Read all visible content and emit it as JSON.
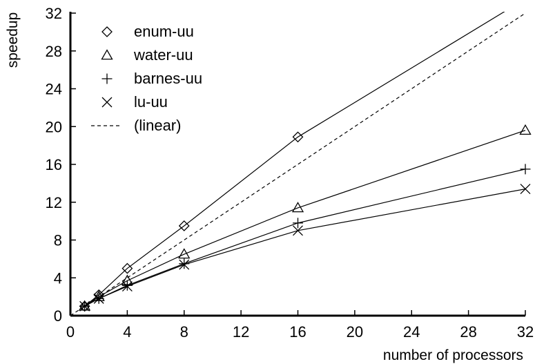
{
  "chart_data": {
    "type": "line",
    "title": "",
    "xlabel": "number of processors",
    "ylabel": "speedup",
    "xlim": [
      0,
      32
    ],
    "ylim": [
      0,
      32
    ],
    "xticks": [
      0,
      4,
      8,
      12,
      16,
      20,
      24,
      28,
      32
    ],
    "yticks": [
      0,
      4,
      8,
      12,
      16,
      20,
      24,
      28,
      32
    ],
    "grid": false,
    "legend_position": "top-left",
    "series": [
      {
        "name": "enum-uu",
        "marker": "diamond",
        "line": "solid",
        "x": [
          1,
          2,
          4,
          8,
          16,
          32
        ],
        "y": [
          1.0,
          2.2,
          5.0,
          9.5,
          18.9,
          33.5
        ]
      },
      {
        "name": "water-uu",
        "marker": "triangle",
        "line": "solid",
        "x": [
          1,
          2,
          4,
          8,
          16,
          32
        ],
        "y": [
          1.0,
          2.0,
          3.7,
          6.5,
          11.4,
          19.6
        ]
      },
      {
        "name": "barnes-uu",
        "marker": "plus",
        "line": "solid",
        "x": [
          1,
          2,
          4,
          8,
          16,
          32
        ],
        "y": [
          1.0,
          1.8,
          3.2,
          5.5,
          9.8,
          15.5
        ]
      },
      {
        "name": "lu-uu",
        "marker": "cross",
        "line": "solid",
        "x": [
          1,
          2,
          4,
          8,
          16,
          32
        ],
        "y": [
          1.0,
          1.8,
          3.1,
          5.4,
          9.0,
          13.4
        ]
      },
      {
        "name": "(linear)",
        "marker": "none",
        "line": "dashed",
        "x": [
          0,
          32
        ],
        "y": [
          0,
          32
        ]
      }
    ]
  }
}
